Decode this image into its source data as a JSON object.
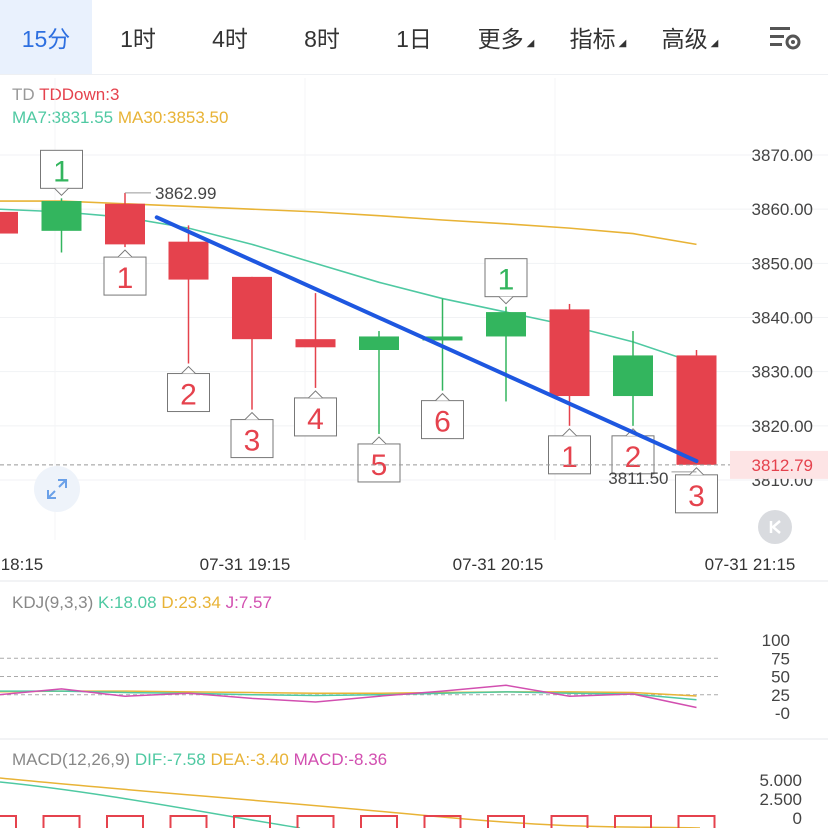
{
  "tabs": [
    {
      "label": "15分",
      "active": true
    },
    {
      "label": "1时"
    },
    {
      "label": "4时"
    },
    {
      "label": "8时"
    },
    {
      "label": "1日"
    },
    {
      "label": "更多",
      "dropdown": true
    },
    {
      "label": "指标",
      "dropdown": true
    },
    {
      "label": "高级",
      "dropdown": true
    }
  ],
  "main_legend": {
    "td_label": "TD",
    "td_value": "TDDown:3",
    "ma7": "MA7:3831.55",
    "ma30": "MA30:3853.50"
  },
  "kdj_legend": {
    "name": "KDJ(9,3,3)",
    "k": "K:18.08",
    "d": "D:23.34",
    "j": "J:7.57"
  },
  "macd_legend": {
    "name": "MACD(12,26,9)",
    "dif": "DIF:-7.58",
    "dea": "DEA:-3.40",
    "macd": "MACD:-8.36"
  },
  "colors": {
    "up": "#33b55e",
    "down": "#e5424d",
    "ma7": "#4fc9a2",
    "ma30": "#e8b336",
    "trend": "#1e57e0",
    "k": "#4fc9a2",
    "d": "#e8b336",
    "j": "#d24fb0",
    "price_tag_bg": "#fde4e5"
  },
  "chart_data": {
    "type": "candlestick",
    "price_axis": {
      "ticks": [
        "3870.00",
        "3860.00",
        "3850.00",
        "3840.00",
        "3830.00",
        "3820.00",
        "3810.00"
      ],
      "range": [
        3800,
        3880
      ]
    },
    "time_axis": {
      "labels": [
        "18:15",
        "07-31 19:15",
        "07-31 20:15",
        "07-31 21:15"
      ]
    },
    "candles": [
      {
        "open": 3859.5,
        "high": 3862.0,
        "low": 3855.0,
        "close": 3855.5,
        "td": "",
        "td_pos": "below"
      },
      {
        "open": 3856.0,
        "high": 3862.0,
        "low": 3852.0,
        "close": 3861.5,
        "td": "1",
        "td_pos": "above"
      },
      {
        "open": 3861.0,
        "high": 3863.0,
        "low": 3853.0,
        "close": 3853.5,
        "td": "1",
        "td_pos": "below"
      },
      {
        "open": 3854.0,
        "high": 3857.0,
        "low": 3831.5,
        "close": 3847.0,
        "td": "2",
        "td_pos": "below"
      },
      {
        "open": 3847.5,
        "high": 3847.5,
        "low": 3823.0,
        "close": 3836.0,
        "td": "3",
        "td_pos": "below"
      },
      {
        "open": 3836.0,
        "high": 3844.5,
        "low": 3827.0,
        "close": 3834.5,
        "td": "4",
        "td_pos": "below"
      },
      {
        "open": 3834.0,
        "high": 3837.5,
        "low": 3818.5,
        "close": 3836.5,
        "td": "5",
        "td_pos": "below"
      },
      {
        "open": 3836.5,
        "high": 3843.5,
        "low": 3826.5,
        "close": 3836.5,
        "td": "6",
        "td_pos": "below"
      },
      {
        "open": 3836.5,
        "high": 3842.0,
        "low": 3824.5,
        "close": 3841.0,
        "td": "1",
        "td_pos": "above"
      },
      {
        "open": 3841.5,
        "high": 3842.5,
        "low": 3820.0,
        "close": 3825.5,
        "td": "1",
        "td_pos": "below"
      },
      {
        "open": 3825.5,
        "high": 3837.5,
        "low": 3820.0,
        "close": 3833.0,
        "td": "2",
        "td_pos": "below"
      },
      {
        "open": 3833.0,
        "high": 3834.0,
        "low": 3812.8,
        "close": 3812.8,
        "td": "3",
        "td_pos": "below"
      }
    ],
    "ma7": [
      3860.0,
      3859.5,
      3858.5,
      3856.5,
      3853.5,
      3850.0,
      3846.5,
      3843.5,
      3841.0,
      3838.5,
      3835.5,
      3831.55
    ],
    "ma30": [
      3861.5,
      3861.5,
      3861.0,
      3860.5,
      3860.0,
      3859.5,
      3858.8,
      3858.0,
      3857.3,
      3856.5,
      3855.5,
      3853.5
    ],
    "trend_line": {
      "from": {
        "index": 2.5,
        "price": 3858.5
      },
      "to": {
        "index": 11.0,
        "price": 3813.5
      }
    },
    "annotations": {
      "high": "3862.99",
      "low": "3811.50",
      "last": "3812.79",
      "last_value": 3812.79
    },
    "kdj": {
      "ticks": [
        "100",
        "75",
        "50",
        "25",
        "-0"
      ],
      "range": [
        -10,
        110
      ],
      "k": [
        30,
        30,
        28,
        27,
        25,
        24,
        25,
        27,
        29,
        27,
        26,
        18.08
      ],
      "d": [
        29,
        30,
        30,
        29,
        28,
        27,
        27,
        28,
        29,
        29,
        28,
        23.34
      ],
      "j": [
        25,
        33,
        23,
        27,
        20,
        15,
        23,
        30,
        38,
        23,
        26,
        7.57
      ]
    },
    "macd_panel": {
      "ticks": [
        "5.000",
        "2.500",
        "0"
      ],
      "range": [
        -10,
        7
      ]
    }
  }
}
